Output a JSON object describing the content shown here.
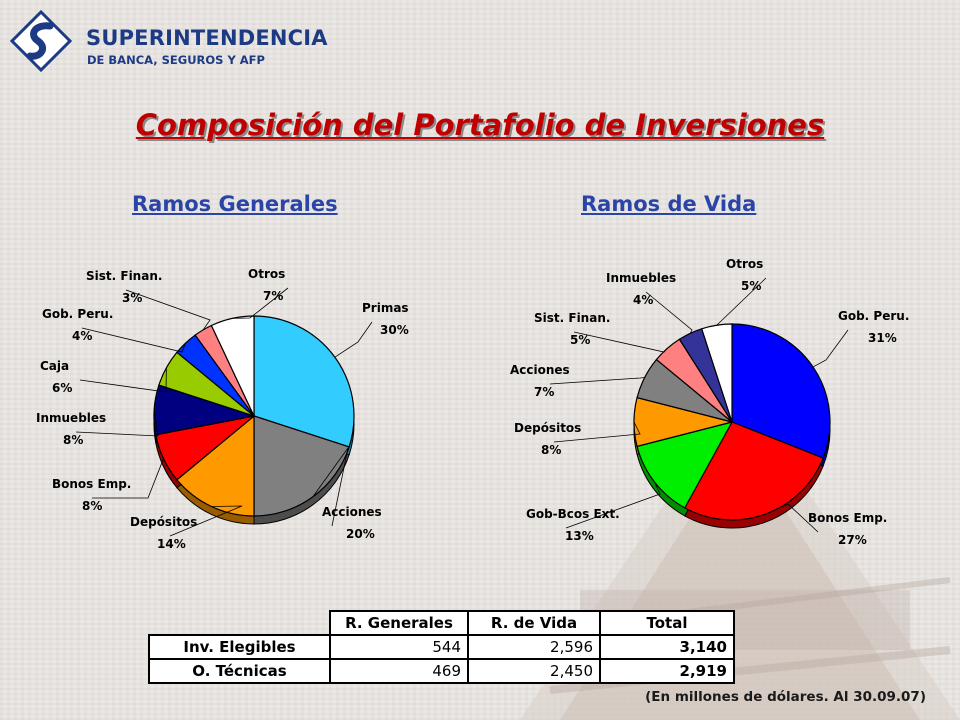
{
  "header": {
    "logo_line1": "SUPERINTENDENCIA",
    "logo_line2": "DE BANCA, SEGUROS Y AFP",
    "title": "Composición del Portafolio de Inversiones"
  },
  "chart_data": [
    {
      "type": "pie",
      "title": "Ramos Generales",
      "categories": [
        "Primas",
        "Acciones",
        "Depósitos",
        "Bonos Emp.",
        "Inmuebles",
        "Caja",
        "Gob. Peru.",
        "Sist. Finan.",
        "Otros"
      ],
      "values": [
        30,
        20,
        14,
        8,
        8,
        6,
        4,
        3,
        7
      ],
      "labels": [
        "30%",
        "20%",
        "14%",
        "8%",
        "8%",
        "6%",
        "4%",
        "3%",
        "7%"
      ],
      "colors": [
        "#33ccff",
        "#808080",
        "#ff9900",
        "#ff0000",
        "#000080",
        "#99cc00",
        "#0033ff",
        "#ff8080",
        "#ffffff"
      ]
    },
    {
      "type": "pie",
      "title": "Ramos de Vida",
      "categories": [
        "Gob. Peru.",
        "Bonos Emp.",
        "Gob-Bcos Ext.",
        "Depósitos",
        "Acciones",
        "Sist. Finan.",
        "Inmuebles",
        "Otros"
      ],
      "values": [
        31,
        27,
        13,
        8,
        7,
        5,
        4,
        5
      ],
      "labels": [
        "31%",
        "27%",
        "13%",
        "8%",
        "7%",
        "5%",
        "4%",
        "5%"
      ],
      "colors": [
        "#0000ff",
        "#ff0000",
        "#00ee00",
        "#ff9900",
        "#808080",
        "#ff8080",
        "#333399",
        "#ffffff"
      ]
    }
  ],
  "table": {
    "headers": [
      "R. Generales",
      "R. de Vida",
      "Total"
    ],
    "rows": [
      {
        "label": "Inv. Elegibles",
        "values": [
          "544",
          "2,596",
          "3,140"
        ]
      },
      {
        "label": "O. Técnicas",
        "values": [
          "469",
          "2,450",
          "2,919"
        ]
      }
    ]
  },
  "note": "(En millones de dólares. Al 30.09.07)"
}
